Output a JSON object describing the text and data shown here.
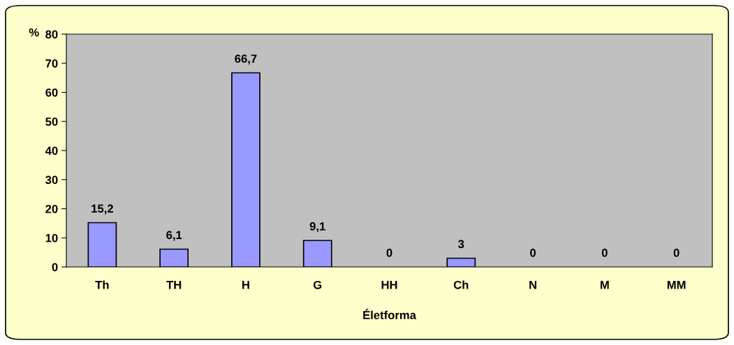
{
  "chart_data": {
    "type": "bar",
    "ylabel": "%",
    "xlabel": "Életforma",
    "categories": [
      "Th",
      "TH",
      "H",
      "G",
      "HH",
      "Ch",
      "N",
      "M",
      "MM"
    ],
    "values": [
      15.2,
      6.1,
      66.7,
      9.1,
      0,
      3,
      0,
      0,
      0
    ],
    "value_labels": [
      "15,2",
      "6,1",
      "66,7",
      "9,1",
      "0",
      "3",
      "0",
      "0",
      "0"
    ],
    "color": "#9999ff",
    "ylim": [
      0,
      80
    ],
    "yticks": [
      0,
      10,
      20,
      30,
      40,
      50,
      60,
      70,
      80
    ],
    "grid": false
  }
}
